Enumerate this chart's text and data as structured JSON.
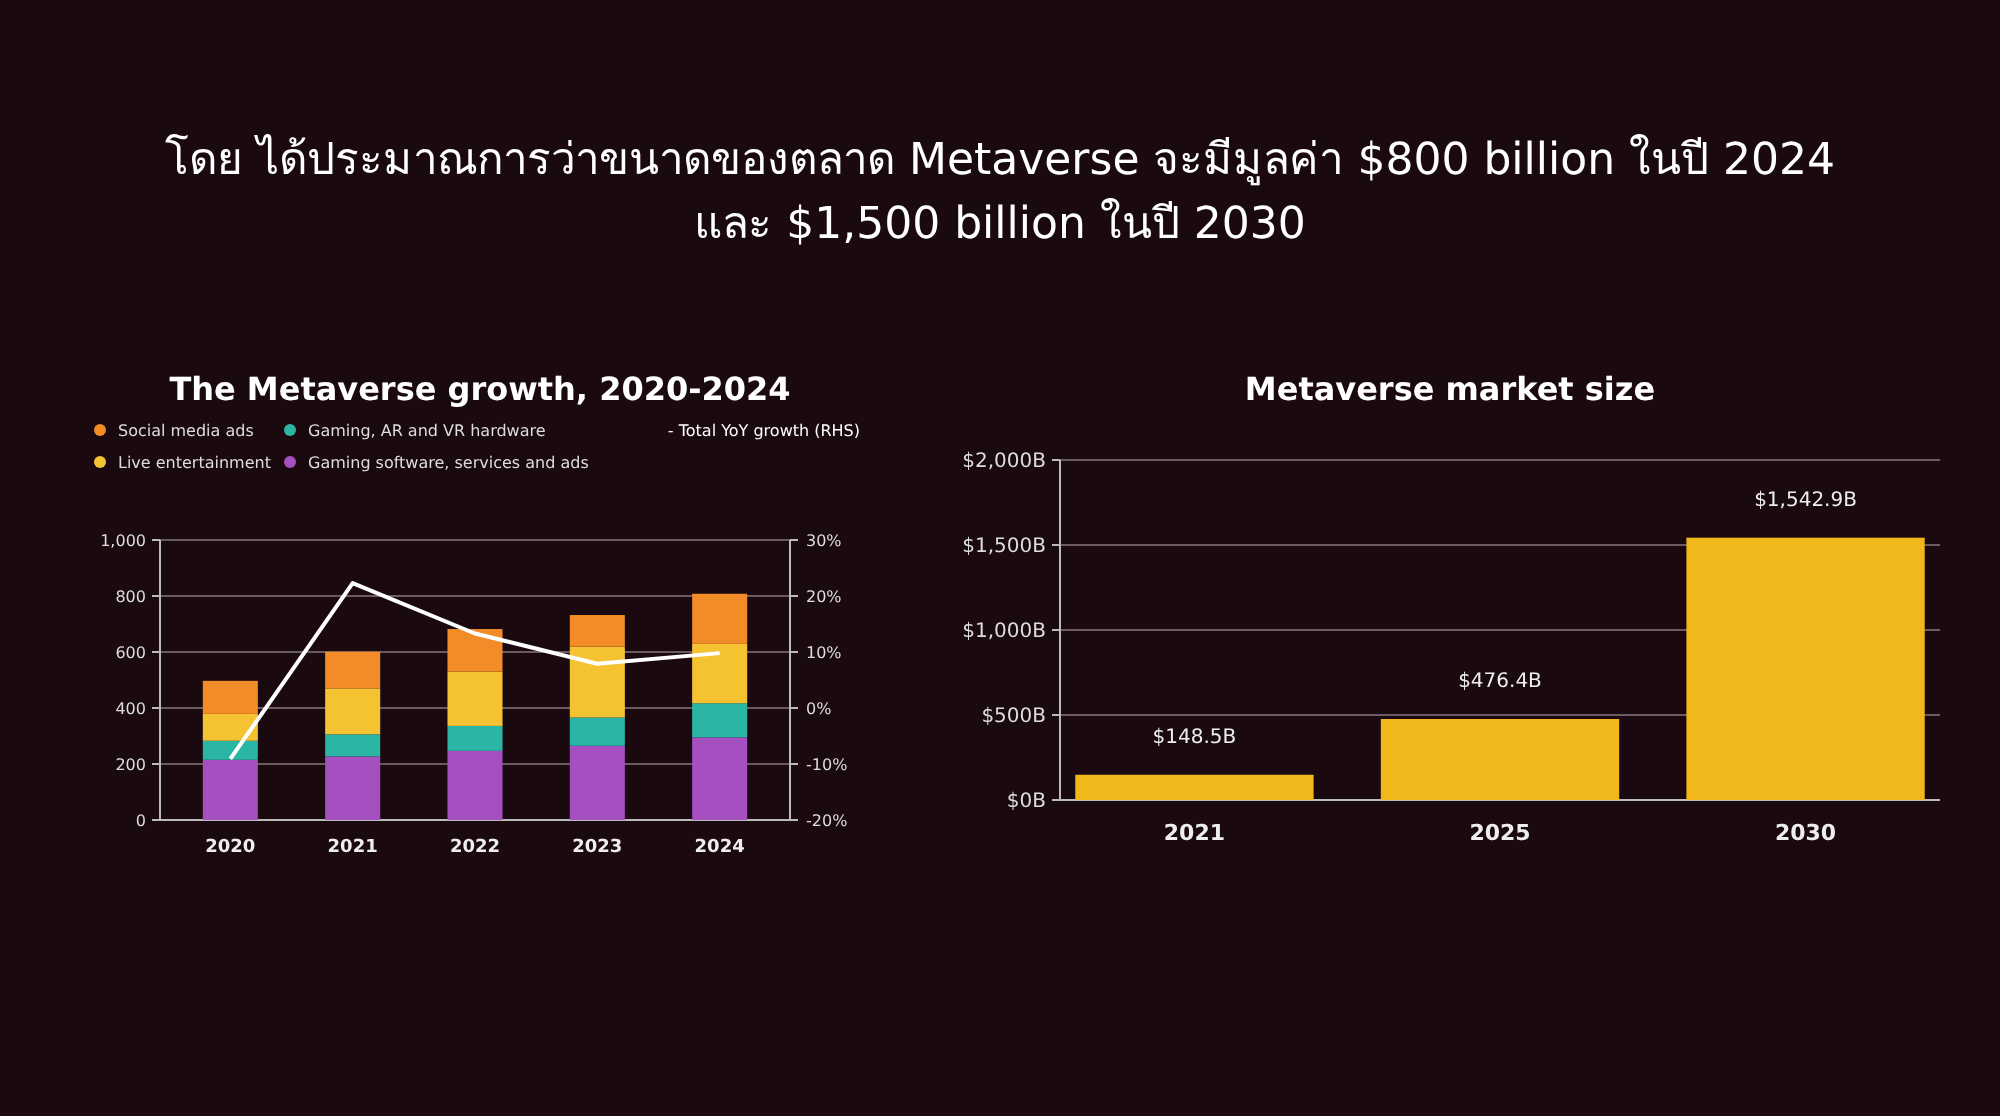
{
  "chart_data": [
    {
      "type": "bar",
      "title": "The Metaverse growth, 2020-2024",
      "annotations": [
        "โดย ได้ประมาณการว่าขนาดของตลาด Metaverse จะมีมูลค่า $800 billion ในปี 2024 และ $1,500 billion ในปี 2030"
      ],
      "categories": [
        "2020",
        "2021",
        "2022",
        "2023",
        "2024"
      ],
      "stacked": true,
      "grid": "y",
      "legend": "top",
      "series": [
        {
          "name": "Gaming software, services and ads",
          "color": "#a64fc0",
          "values": [
            215,
            227,
            247,
            265,
            295
          ]
        },
        {
          "name": "Gaming, AR and VR hardware",
          "color": "#2bb5a5",
          "values": [
            68,
            79,
            89,
            101,
            122
          ]
        },
        {
          "name": "Live entertainment",
          "color": "#f5c231",
          "values": [
            96,
            164,
            194,
            253,
            212
          ]
        },
        {
          "name": "Social media ads",
          "color": "#f28c28",
          "values": [
            118,
            131,
            152,
            113,
            179
          ]
        },
        {
          "name": "- Total YoY growth (RHS)",
          "type": "line",
          "axis": "y2",
          "color": "#ffffff",
          "values": [
            -9.1,
            22.3,
            13.3,
            7.9,
            9.8
          ]
        }
      ],
      "ylim": [
        0,
        1000
      ],
      "yticks": [
        0,
        200,
        400,
        600,
        800,
        {
          "value": 1000,
          "label": "1,000"
        }
      ],
      "y2lim": [
        -20,
        30
      ],
      "y2ticks": [
        {
          "value": -20,
          "label": "-20%"
        },
        {
          "value": -10,
          "label": "-10%"
        },
        {
          "value": 0,
          "label": "0%"
        },
        {
          "value": 10,
          "label": "10%"
        },
        {
          "value": 20,
          "label": "20%"
        },
        {
          "value": 30,
          "label": "30%"
        }
      ]
    },
    {
      "type": "bar",
      "title": "Metaverse market size",
      "categories": [
        "2021",
        "2025",
        "2030"
      ],
      "grid": "y",
      "values": [
        148.5,
        476.4,
        1542.9
      ],
      "color": "#f0b81a",
      "value_labels": [
        "$148.5B",
        "$476.4B",
        "$1,542.9B"
      ],
      "ylim": [
        0,
        2000
      ],
      "yticks": [
        {
          "value": 0,
          "label": "$0B"
        },
        {
          "value": 500,
          "label": "$500B"
        },
        {
          "value": 1000,
          "label": "$1,000B"
        },
        {
          "value": 1500,
          "label": "$1,500B"
        },
        {
          "value": 2000,
          "label": "$2,000B"
        }
      ]
    }
  ]
}
